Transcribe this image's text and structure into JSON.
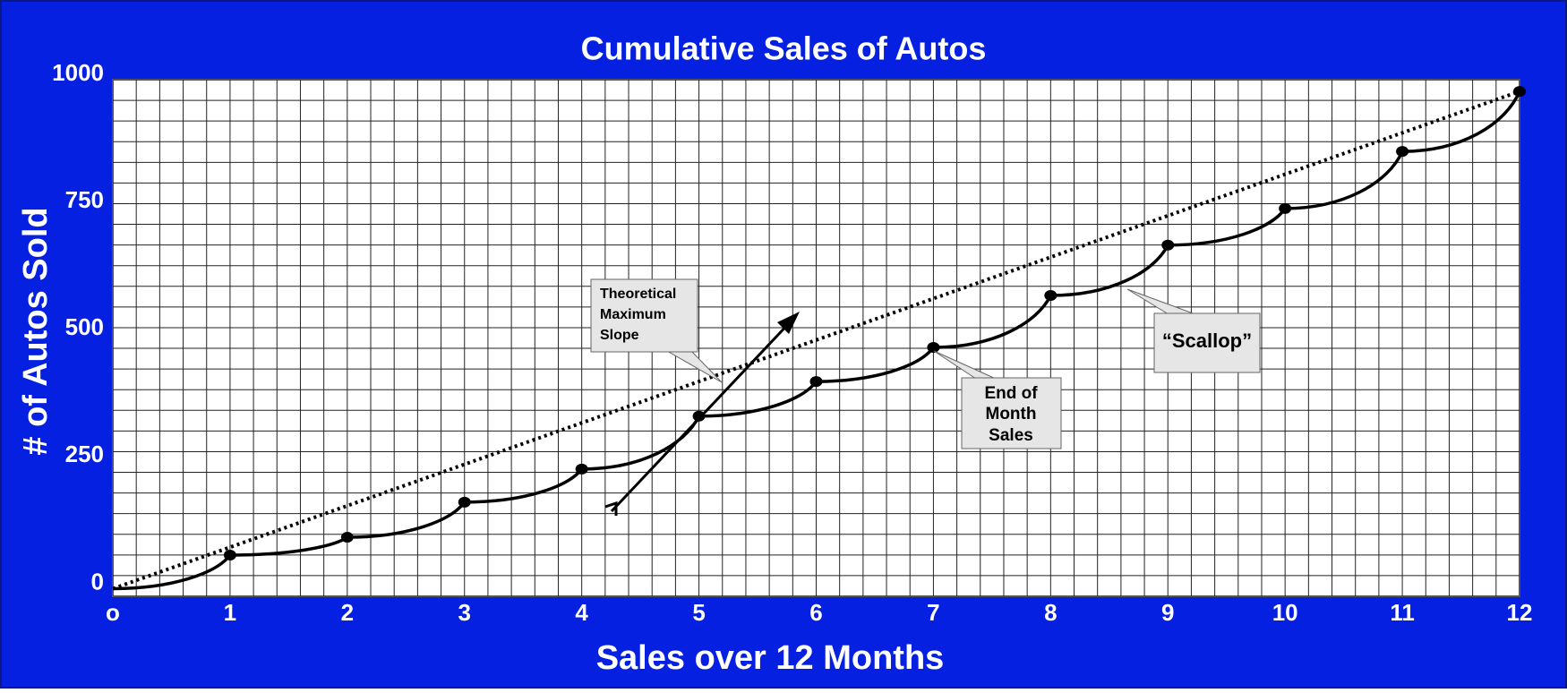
{
  "chart_data": {
    "type": "line",
    "title": "Cumulative Sales of Autos",
    "x_label": "Sales over 12 Months",
    "y_label": "# of Autos Sold",
    "x": [
      0,
      1,
      2,
      3,
      4,
      5,
      6,
      7,
      8,
      9,
      10,
      11,
      12
    ],
    "series": [
      {
        "color": "#000000",
        "values": [
          0,
          66,
          101,
          170,
          235,
          339,
          407,
          474,
          576,
          675,
          747,
          859,
          977
        ]
      }
    ],
    "trend": {
      "x": [
        0,
        12
      ],
      "values": [
        0,
        977
      ],
      "color": "#000000",
      "style": "dotted"
    },
    "xlim": [
      0,
      12
    ],
    "xticks": [
      {
        "value": 0,
        "label": "o"
      },
      1,
      2,
      3,
      4,
      5,
      6,
      7,
      8,
      9,
      10,
      11,
      12
    ],
    "ylim": [
      -15,
      1000
    ],
    "yticks": [
      0,
      250,
      500,
      750,
      1000
    ],
    "grid": true,
    "grid_divisions": [
      60,
      25
    ],
    "annotations": [
      {
        "text": [
          "Theoretical",
          "Maximum",
          "Slope"
        ]
      },
      {
        "text": [
          "End of",
          "Month",
          "Sales"
        ]
      },
      {
        "text": "“Scallop”"
      }
    ]
  }
}
